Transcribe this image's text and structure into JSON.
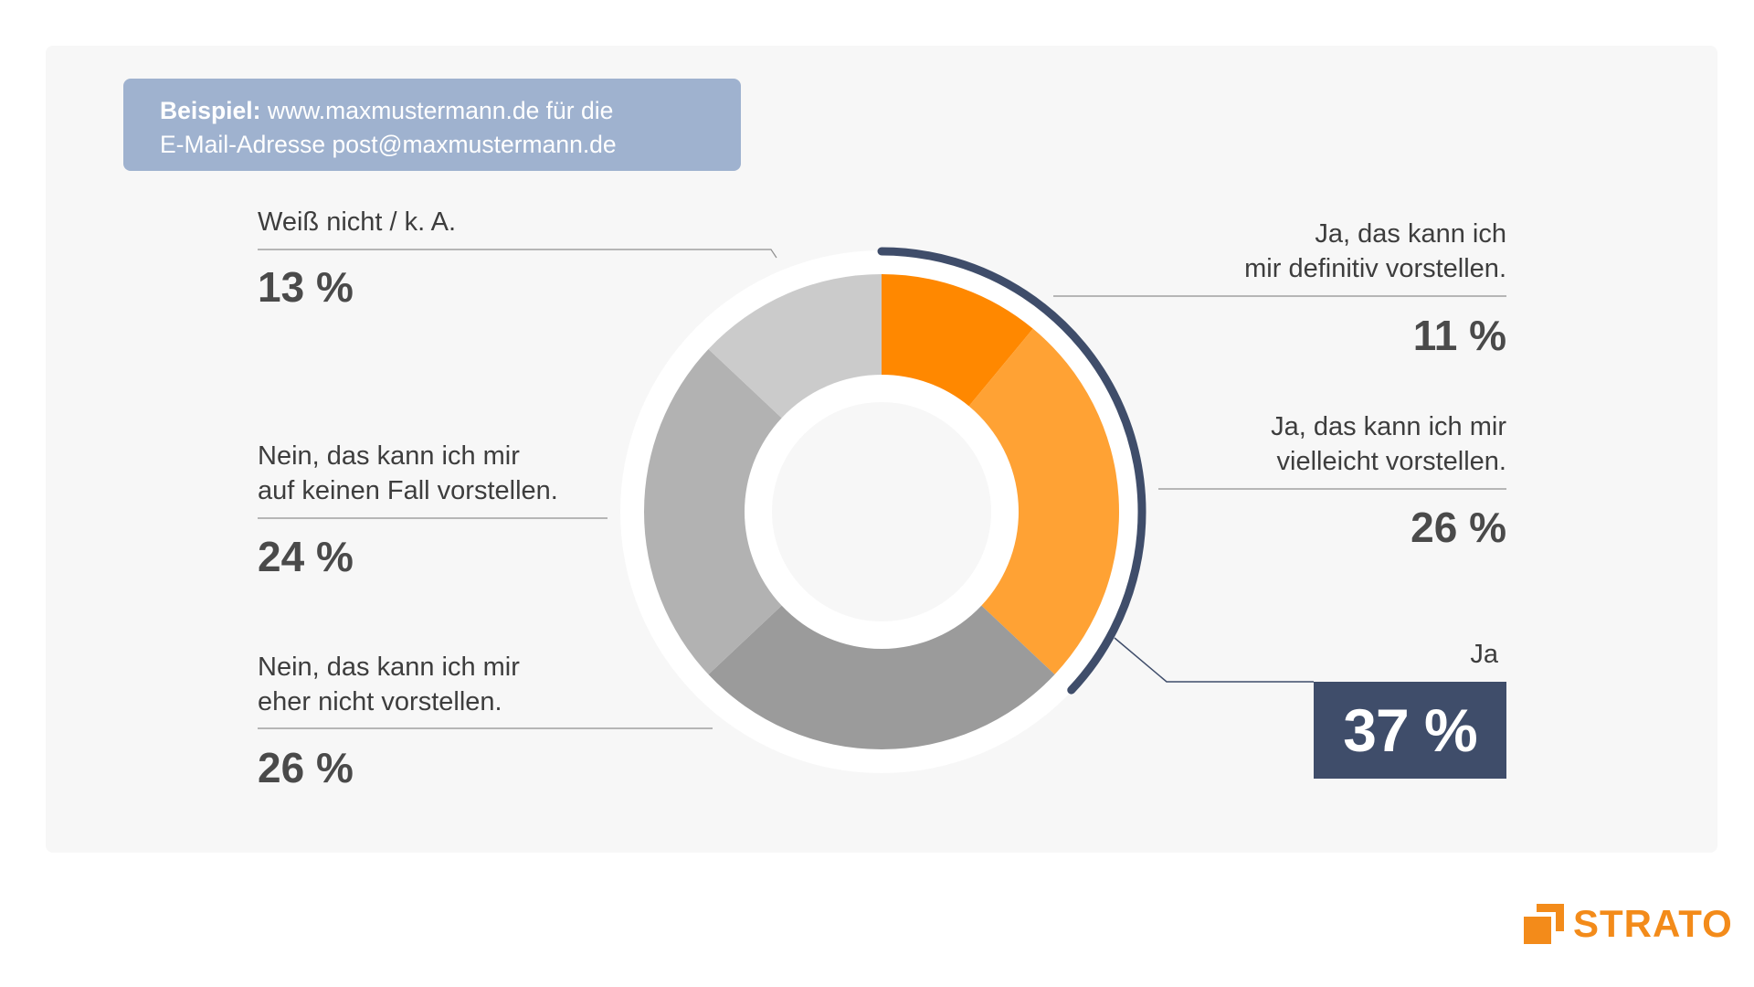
{
  "example": {
    "bold": "Beispiel:",
    "line1": " www.maxmustermann.de für die",
    "line2": "E-Mail-Adresse post@maxmustermann.de"
  },
  "segments": [
    {
      "line1": "Ja, das kann ich",
      "line2": "mir definitiv vorstellen.",
      "value_text": "11 %"
    },
    {
      "line1": "Ja, das kann ich mir",
      "line2": "vielleicht vorstellen.",
      "value_text": "26 %"
    },
    {
      "line1": "Nein, das kann ich mir",
      "line2": "eher nicht vorstellen.",
      "value_text": "26 %"
    },
    {
      "line1": "Nein, das kann ich mir",
      "line2": "auf keinen Fall vorstellen.",
      "value_text": "24 %"
    },
    {
      "line1": "Weiß nicht / k. A.",
      "line2": "",
      "value_text": "13 %"
    }
  ],
  "summary": {
    "label": "Ja",
    "value_text": "37 %"
  },
  "logo": {
    "text": "STRATO"
  },
  "colors": {
    "accent_dark": "#3f4d6a",
    "example_box": "#9fb2cf",
    "brand_orange": "#f38b1a"
  },
  "chart_data": {
    "type": "pie",
    "donut": true,
    "labels": [
      "Ja, das kann ich mir definitiv vorstellen.",
      "Ja, das kann ich mir vielleicht vorstellen.",
      "Nein, das kann ich mir eher nicht vorstellen.",
      "Nein, das kann ich mir auf keinen Fall vorstellen.",
      "Weiß nicht / k. A."
    ],
    "values": [
      11,
      26,
      26,
      24,
      13
    ],
    "colors": [
      "#ff8800",
      "#ffa234",
      "#9b9b9b",
      "#b2b2b2",
      "#cbcbcb"
    ],
    "unit": "%",
    "highlight_group": {
      "label": "Ja",
      "indices": [
        0,
        1
      ],
      "value": 37
    }
  }
}
